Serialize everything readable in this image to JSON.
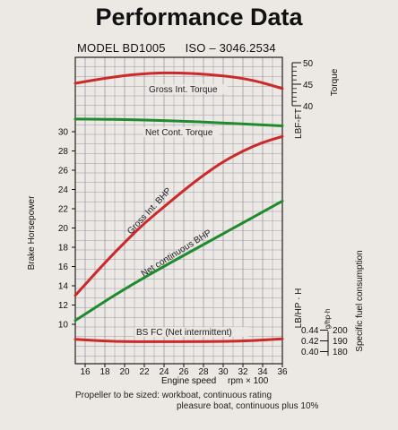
{
  "chart_data": {
    "type": "line",
    "title": "Performance Data",
    "subtitle": {
      "model": "MODEL BD1005",
      "iso": "ISO – 3046.2534"
    },
    "x": [
      16,
      18,
      20,
      22,
      24,
      26,
      28,
      30,
      32,
      34,
      36
    ],
    "x_ticks": [
      "16",
      "18",
      "20",
      "22",
      "24",
      "26",
      "28",
      "30",
      "32",
      "34",
      "36"
    ],
    "xlabel": "Engine speed",
    "xunit": "rpm × 100",
    "xlim": [
      15,
      36
    ],
    "left_axis": {
      "label": "Brake Horsepower",
      "range": [
        8,
        31
      ],
      "ticks": [
        10,
        12,
        14,
        16,
        18,
        20,
        22,
        24,
        26,
        28,
        30
      ]
    },
    "torque_axis": {
      "label": "Torque",
      "unit": "LBF-FT",
      "range": [
        40,
        50
      ],
      "ticks": [
        40,
        45,
        50
      ]
    },
    "fuel_axis": {
      "unit": "LB/HP · H",
      "unit_alt": "g/hp·h",
      "label": "Specific fuel consumption",
      "ticks_lb": [
        "0.44",
        "0.42",
        "0.40"
      ],
      "ticks_g": [
        "200",
        "190",
        "180"
      ],
      "range_g": [
        178,
        206
      ]
    },
    "series": [
      {
        "name": "Gross Int. Torque",
        "axis": "torque",
        "color": "#cc2a2a",
        "x": [
          15,
          18,
          21,
          24,
          27,
          30,
          33,
          36
        ],
        "values": [
          45.2,
          46.4,
          47.3,
          47.7,
          47.5,
          47.0,
          46.0,
          44.0
        ]
      },
      {
        "name": "Net Cont. Torque",
        "axis": "torque",
        "color": "#1f8a2e",
        "x": [
          15,
          20,
          25,
          30,
          36
        ],
        "values": [
          36.9,
          36.8,
          36.5,
          36.0,
          35.3
        ]
      },
      {
        "name": "Gross Int. BHP",
        "axis": "bhp",
        "color": "#cc2a2a",
        "x": [
          15,
          18,
          20,
          22,
          24,
          26,
          28,
          30,
          32,
          34,
          36
        ],
        "values": [
          13.0,
          16.4,
          18.5,
          20.5,
          22.2,
          23.9,
          25.5,
          26.9,
          28.0,
          28.9,
          29.5
        ]
      },
      {
        "name": "Net continuous BHP",
        "axis": "bhp",
        "color": "#1f8a2e",
        "x": [
          15,
          20,
          25,
          30,
          36
        ],
        "values": [
          10.4,
          13.7,
          16.6,
          19.4,
          22.8
        ]
      },
      {
        "name": "BS FC (Net intermittent)",
        "axis": "fuel",
        "color": "#cc2a2a",
        "x": [
          15,
          18,
          21,
          24,
          27,
          30,
          33,
          36
        ],
        "values": [
          195.5,
          193.5,
          193.0,
          193.0,
          193.0,
          193.2,
          194.0,
          196.0
        ]
      }
    ],
    "grid": true
  },
  "note": {
    "line1": "Propeller to be sized: workboat, continuous rating",
    "line2": "pleasure boat, continuous plus 10%"
  },
  "colors": {
    "grid": "#9a9aa8",
    "red": "#cc2a2a",
    "green": "#1f8a2e",
    "ink": "#111111"
  }
}
